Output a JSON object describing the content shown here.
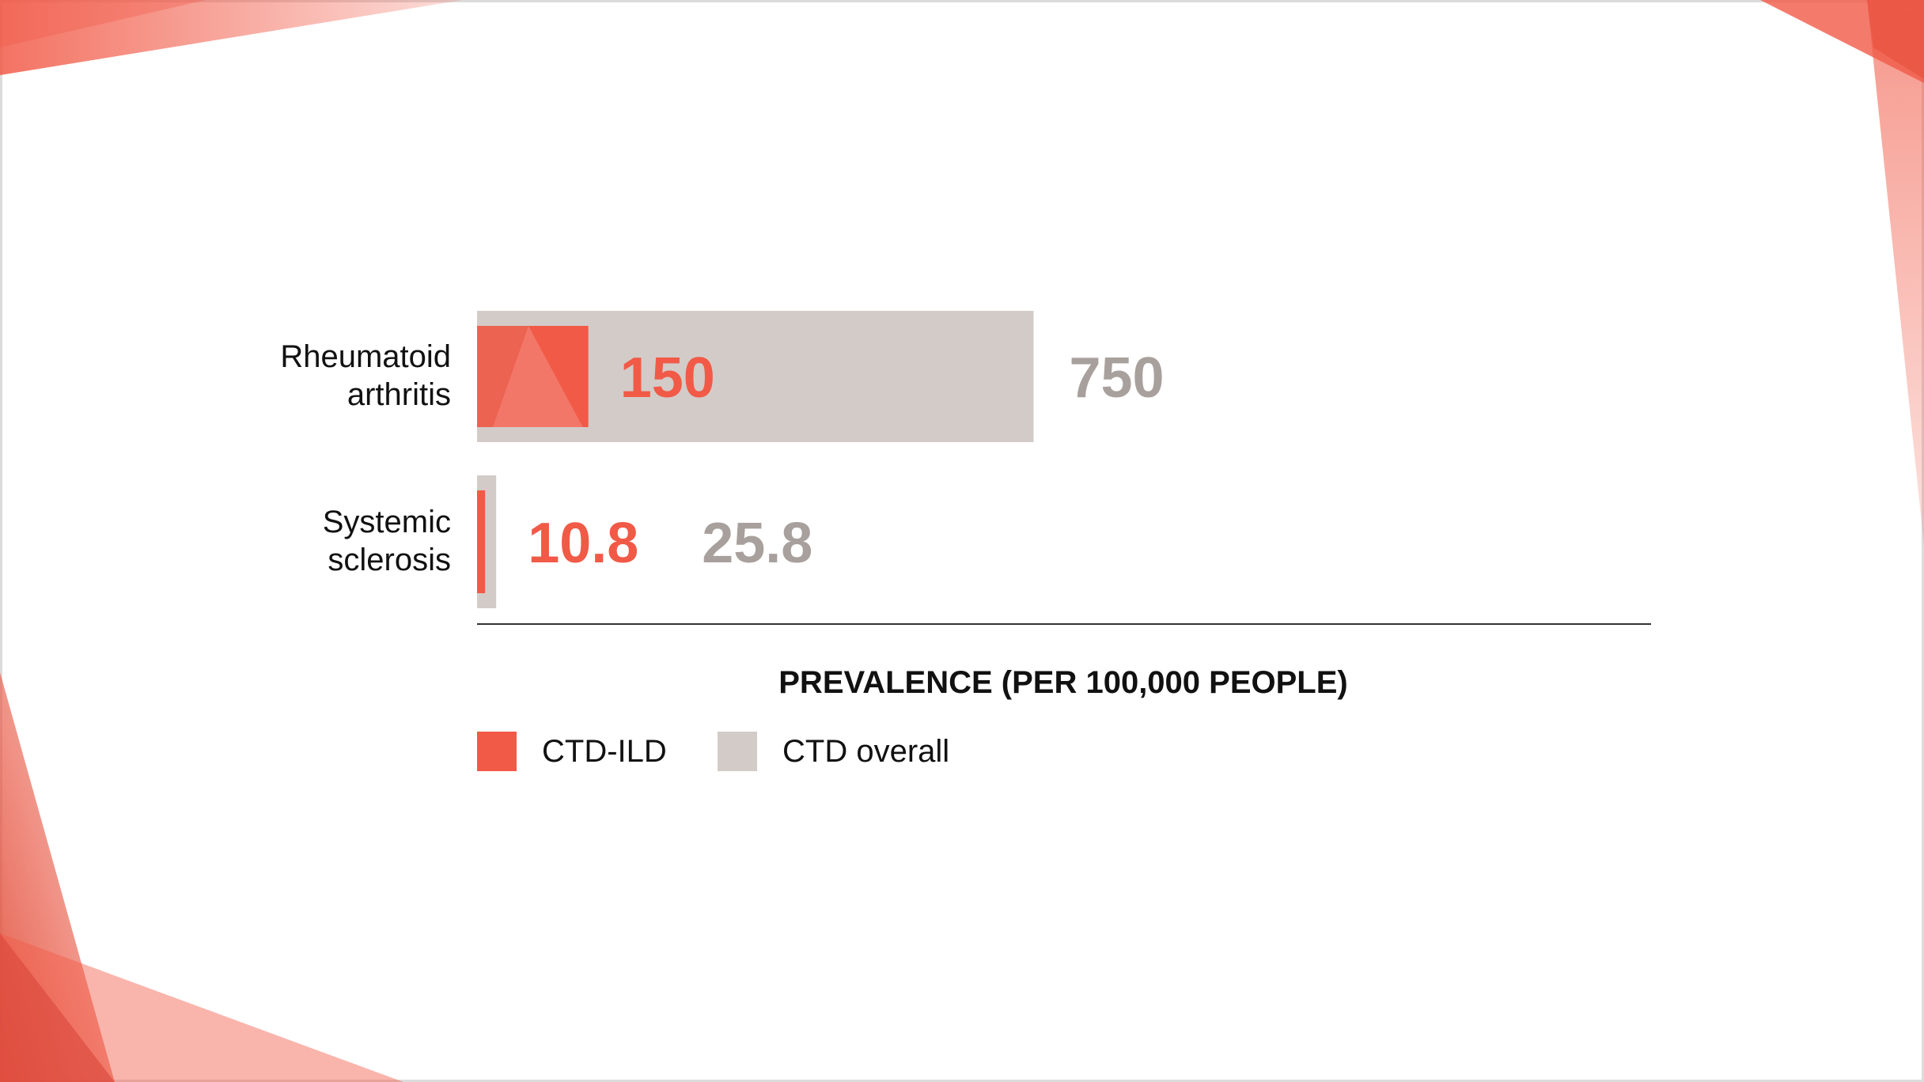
{
  "colors": {
    "ctd_ild": "#f15a47",
    "ctd_overall": "#d3cbc8",
    "ctd_overall_text": "#a8a09c",
    "decoration": "#f15a47",
    "axis": "#333333"
  },
  "chart_data": {
    "type": "bar",
    "orientation": "horizontal",
    "stacking": "overlaid",
    "categories": [
      [
        "Rheumatoid",
        "arthritis"
      ],
      [
        "Systemic",
        "sclerosis"
      ]
    ],
    "series": [
      {
        "name": "CTD-ILD",
        "values": [
          150,
          10.8
        ],
        "labels": [
          "150",
          "10.8"
        ]
      },
      {
        "name": "CTD overall",
        "values": [
          750,
          25.8
        ],
        "labels": [
          "750",
          "25.8"
        ]
      }
    ],
    "xlabel": "PREVALENCE (PER 100,000 PEOPLE)",
    "ylabel": "",
    "xlim": [
      0,
      1580
    ],
    "grid": false,
    "legend_position": "bottom-left"
  }
}
